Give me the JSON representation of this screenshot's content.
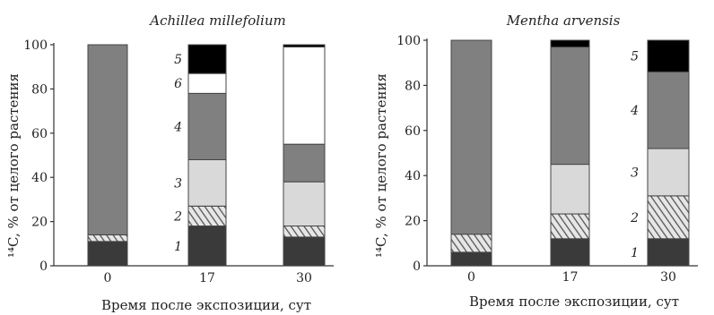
{
  "colors": {
    "s1": "#3a3a3a",
    "s2_hatch_bg": "#e6e6e6",
    "s2_hatch_line": "#555555",
    "s3": "#d9d9d9",
    "s4": "#808080",
    "s5": "#000000",
    "s6": "#ffffff",
    "outline": "#444444"
  },
  "chart_data": [
    {
      "type": "bar",
      "stacked": true,
      "title": "Achillea millefolium",
      "xlabel": "Время после экспозиции, сут",
      "ylabel": "¹⁴C, % от целого растения",
      "ylim": [
        0,
        100
      ],
      "yticks": [
        "0",
        "20",
        "40",
        "60",
        "80",
        "100"
      ],
      "categories": [
        "0",
        "17",
        "30"
      ],
      "segment_labels": [
        "1",
        "2",
        "3",
        "4",
        "5",
        "6"
      ],
      "series": [
        {
          "key": "1",
          "values": [
            11,
            18,
            13
          ]
        },
        {
          "key": "2",
          "values": [
            3,
            9,
            5
          ]
        },
        {
          "key": "3",
          "values": [
            0,
            21,
            20
          ]
        },
        {
          "key": "4",
          "values": [
            86,
            30,
            17
          ]
        },
        {
          "key": "6",
          "values": [
            0,
            9,
            44
          ]
        },
        {
          "key": "5",
          "values": [
            0,
            13,
            1
          ]
        }
      ]
    },
    {
      "type": "bar",
      "stacked": true,
      "title": "Mentha arvensis",
      "xlabel": "Время после экспозиции, сут",
      "ylabel": "¹⁴C, % от целого растения",
      "ylim": [
        0,
        100
      ],
      "yticks": [
        "0",
        "20",
        "40",
        "60",
        "80",
        "100"
      ],
      "categories": [
        "0",
        "17",
        "30"
      ],
      "segment_labels": [
        "1",
        "2",
        "3",
        "4",
        "5"
      ],
      "series": [
        {
          "key": "1",
          "values": [
            6,
            12,
            12
          ]
        },
        {
          "key": "2",
          "values": [
            8,
            11,
            19
          ]
        },
        {
          "key": "3",
          "values": [
            0,
            22,
            21
          ]
        },
        {
          "key": "4",
          "values": [
            86,
            52,
            34
          ]
        },
        {
          "key": "5",
          "values": [
            0,
            3,
            14
          ]
        }
      ]
    }
  ]
}
